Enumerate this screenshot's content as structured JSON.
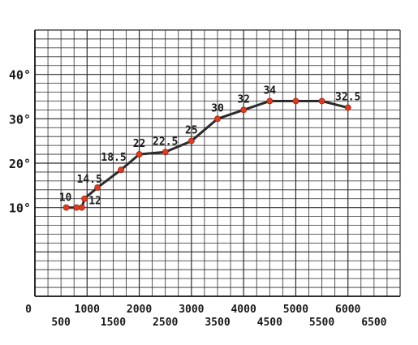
{
  "chart_data": {
    "type": "line",
    "title": "",
    "xlabel": "",
    "ylabel": "",
    "xlim": [
      0,
      7000
    ],
    "ylim": [
      -10,
      50
    ],
    "grid": true,
    "x_ticks_row1": [
      "0",
      "1000",
      "2000",
      "3000",
      "4000",
      "5000",
      "6000"
    ],
    "x_ticks_row2": [
      "500",
      "1500",
      "2500",
      "3500",
      "4500",
      "5500",
      "6500"
    ],
    "y_ticks": [
      "10°",
      "20°",
      "30°",
      "40°"
    ],
    "series": [
      {
        "x": [
          600,
          800,
          900,
          950,
          1200,
          1650,
          2000,
          2500,
          3000,
          3500,
          4000,
          4500,
          5000,
          5500,
          6000
        ],
        "y": [
          10,
          10,
          10,
          12,
          14.5,
          18.5,
          22,
          22.5,
          25,
          30,
          32,
          34,
          34,
          34,
          32.5
        ],
        "point_labels": [
          "10",
          "",
          "",
          "12",
          "14.5",
          "18.5",
          "22",
          "22.5",
          "25",
          "30",
          "32",
          "34",
          "",
          "",
          "32.5"
        ]
      }
    ],
    "colors": {
      "line": "#2b2b2b",
      "points": "#e03a1e",
      "grid": "#2b2b2b"
    }
  }
}
